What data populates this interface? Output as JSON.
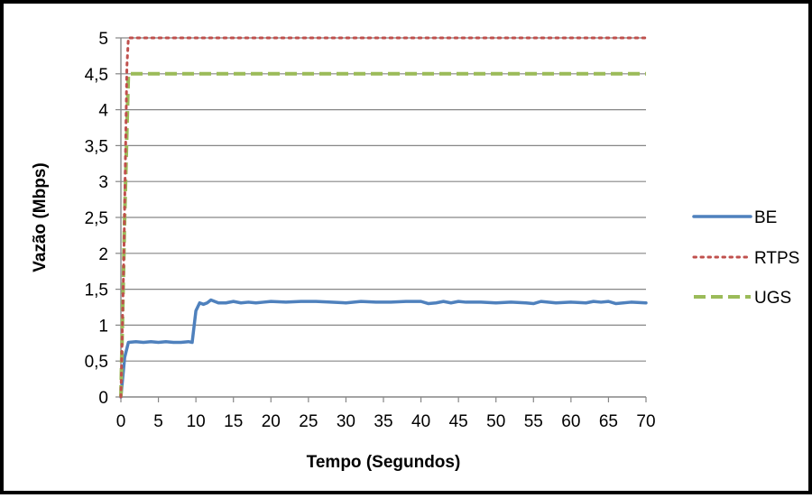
{
  "chart_data": {
    "type": "line",
    "title": "",
    "xlabel": "Tempo (Segundos)",
    "ylabel": "Vazão (Mbps)",
    "xlim": [
      0,
      70
    ],
    "ylim": [
      0,
      5
    ],
    "xticks": [
      "0",
      "5",
      "10",
      "15",
      "20",
      "25",
      "30",
      "35",
      "40",
      "45",
      "50",
      "55",
      "60",
      "65",
      "70"
    ],
    "yticks": [
      "0",
      "0,5",
      "1",
      "1,5",
      "2",
      "2,5",
      "3",
      "3,5",
      "4",
      "4,5",
      "5"
    ],
    "grid": "horizontal",
    "legend_position": "right",
    "series": [
      {
        "name": "BE",
        "color": "#4F81BD",
        "style": "solid",
        "x": [
          0,
          0.5,
          1,
          2,
          3,
          4,
          5,
          6,
          7,
          8,
          9,
          9.5,
          10,
          10.5,
          11,
          11.5,
          12,
          13,
          14,
          15,
          16,
          17,
          18,
          19,
          20,
          22,
          24,
          26,
          28,
          30,
          32,
          34,
          36,
          38,
          40,
          41,
          42,
          43,
          44,
          45,
          46,
          48,
          50,
          52,
          54,
          55,
          56,
          58,
          60,
          62,
          63,
          64,
          65,
          66,
          68,
          70
        ],
        "y": [
          0.0,
          0.55,
          0.76,
          0.77,
          0.76,
          0.77,
          0.76,
          0.77,
          0.76,
          0.76,
          0.77,
          0.76,
          1.2,
          1.31,
          1.29,
          1.31,
          1.35,
          1.31,
          1.31,
          1.33,
          1.31,
          1.32,
          1.31,
          1.32,
          1.33,
          1.32,
          1.33,
          1.33,
          1.32,
          1.31,
          1.33,
          1.32,
          1.32,
          1.33,
          1.33,
          1.3,
          1.31,
          1.33,
          1.31,
          1.33,
          1.32,
          1.32,
          1.31,
          1.32,
          1.31,
          1.3,
          1.33,
          1.31,
          1.32,
          1.31,
          1.33,
          1.32,
          1.33,
          1.3,
          1.32,
          1.31
        ]
      },
      {
        "name": "RTPS",
        "color": "#C0504D",
        "style": "dotted",
        "x": [
          0,
          0.4,
          0.8,
          1,
          5,
          70
        ],
        "y": [
          0,
          2.0,
          4.6,
          5,
          5,
          5
        ]
      },
      {
        "name": "UGS",
        "color": "#9BBB59",
        "style": "dashed",
        "x": [
          0,
          0.5,
          1,
          1.5,
          5,
          70
        ],
        "y": [
          0,
          2.5,
          4.5,
          4.5,
          4.5,
          4.5
        ]
      }
    ]
  }
}
